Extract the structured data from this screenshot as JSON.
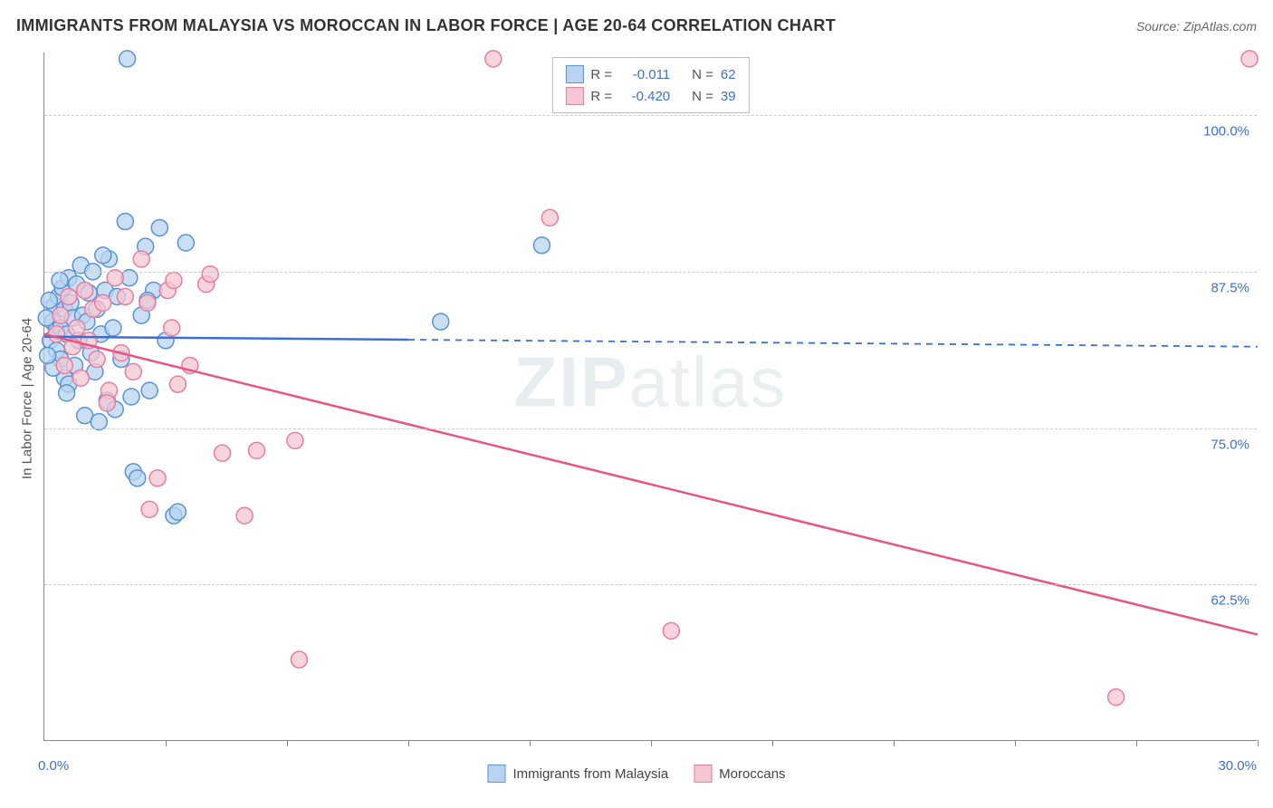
{
  "title": "IMMIGRANTS FROM MALAYSIA VS MOROCCAN IN LABOR FORCE | AGE 20-64 CORRELATION CHART",
  "source_label": "Source: ZipAtlas.com",
  "watermark": {
    "zip": "ZIP",
    "atlas": "atlas"
  },
  "y_axis_title": "In Labor Force | Age 20-64",
  "axes": {
    "xlim": [
      0,
      30
    ],
    "ylim": [
      50,
      105
    ],
    "x_min_label": "0.0%",
    "x_max_label": "30.0%",
    "x_min_color": "#3b6fd6",
    "x_max_color": "#3b6fd6",
    "x_tick_positions": [
      3,
      6,
      9,
      12,
      15,
      18,
      21,
      24,
      27,
      30
    ],
    "y_gridlines": [
      62.5,
      75.0,
      87.5,
      100.0
    ],
    "y_tick_labels": [
      "62.5%",
      "75.0%",
      "87.5%",
      "100.0%"
    ],
    "y_tick_color": "#3b6fd6"
  },
  "series": [
    {
      "name": "Immigrants from Malaysia",
      "fill": "#b8d4f0",
      "stroke": "#5a93d6",
      "line_stroke": "#3b6fd6",
      "marker_radius": 9,
      "marker_opacity": 0.75,
      "R_label": "-0.011",
      "N_label": "62",
      "regression": {
        "x1": 0,
        "y1": 82.3,
        "x2": 30,
        "y2": 81.5,
        "solid_until_x": 9
      },
      "points": [
        [
          0.15,
          82.0
        ],
        [
          0.2,
          83.5
        ],
        [
          0.25,
          84.8
        ],
        [
          0.3,
          81.2
        ],
        [
          0.3,
          82.8
        ],
        [
          0.35,
          85.5
        ],
        [
          0.4,
          80.5
        ],
        [
          0.4,
          83.0
        ],
        [
          0.45,
          86.2
        ],
        [
          0.5,
          79.0
        ],
        [
          0.5,
          84.5
        ],
        [
          0.55,
          82.5
        ],
        [
          0.6,
          87.0
        ],
        [
          0.6,
          78.5
        ],
        [
          0.65,
          85.0
        ],
        [
          0.7,
          83.8
        ],
        [
          0.75,
          80.0
        ],
        [
          0.8,
          86.5
        ],
        [
          0.85,
          82.0
        ],
        [
          0.9,
          88.0
        ],
        [
          0.95,
          84.0
        ],
        [
          1.0,
          76.0
        ],
        [
          1.05,
          83.5
        ],
        [
          1.1,
          85.8
        ],
        [
          1.15,
          81.0
        ],
        [
          1.2,
          87.5
        ],
        [
          1.25,
          79.5
        ],
        [
          1.3,
          84.5
        ],
        [
          1.4,
          82.5
        ],
        [
          1.5,
          86.0
        ],
        [
          1.55,
          77.2
        ],
        [
          1.6,
          88.5
        ],
        [
          1.7,
          83.0
        ],
        [
          1.8,
          85.5
        ],
        [
          1.9,
          80.5
        ],
        [
          2.0,
          91.5
        ],
        [
          2.05,
          104.5
        ],
        [
          2.1,
          87.0
        ],
        [
          2.2,
          71.5
        ],
        [
          2.3,
          71.0
        ],
        [
          2.4,
          84.0
        ],
        [
          2.5,
          89.5
        ],
        [
          2.6,
          78.0
        ],
        [
          2.7,
          86.0
        ],
        [
          2.85,
          91.0
        ],
        [
          3.0,
          82.0
        ],
        [
          3.2,
          68.0
        ],
        [
          3.3,
          68.3
        ],
        [
          3.5,
          89.8
        ],
        [
          2.15,
          77.5
        ],
        [
          1.35,
          75.5
        ],
        [
          0.55,
          77.8
        ],
        [
          0.38,
          86.8
        ],
        [
          0.22,
          79.8
        ],
        [
          0.12,
          85.2
        ],
        [
          0.08,
          80.8
        ],
        [
          0.05,
          83.8
        ],
        [
          1.45,
          88.8
        ],
        [
          1.75,
          76.5
        ],
        [
          2.55,
          85.2
        ],
        [
          9.8,
          83.5
        ],
        [
          12.3,
          89.6
        ]
      ]
    },
    {
      "name": "Moroccans",
      "fill": "#f6c6d2",
      "stroke": "#e87ea0",
      "line_stroke": "#e8557f",
      "marker_radius": 9,
      "marker_opacity": 0.75,
      "R_label": "-0.420",
      "N_label": "39",
      "regression": {
        "x1": 0,
        "y1": 82.5,
        "x2": 30,
        "y2": 58.5,
        "solid_until_x": 30
      },
      "points": [
        [
          0.3,
          82.5
        ],
        [
          0.4,
          84.0
        ],
        [
          0.5,
          80.0
        ],
        [
          0.6,
          85.5
        ],
        [
          0.7,
          81.5
        ],
        [
          0.8,
          83.0
        ],
        [
          0.9,
          79.0
        ],
        [
          1.0,
          86.0
        ],
        [
          1.1,
          82.0
        ],
        [
          1.2,
          84.5
        ],
        [
          1.3,
          80.5
        ],
        [
          1.45,
          85.0
        ],
        [
          1.6,
          78.0
        ],
        [
          1.75,
          87.0
        ],
        [
          1.9,
          81.0
        ],
        [
          2.0,
          85.5
        ],
        [
          2.2,
          79.5
        ],
        [
          2.4,
          88.5
        ],
        [
          2.55,
          85.0
        ],
        [
          2.6,
          68.5
        ],
        [
          2.8,
          71.0
        ],
        [
          3.05,
          86.0
        ],
        [
          3.15,
          83.0
        ],
        [
          3.2,
          86.8
        ],
        [
          3.3,
          78.5
        ],
        [
          3.6,
          80.0
        ],
        [
          4.0,
          86.5
        ],
        [
          4.1,
          87.3
        ],
        [
          4.4,
          73.0
        ],
        [
          4.95,
          68.0
        ],
        [
          5.25,
          73.2
        ],
        [
          6.2,
          74.0
        ],
        [
          6.3,
          56.5
        ],
        [
          11.1,
          104.5
        ],
        [
          12.5,
          91.8
        ],
        [
          15.5,
          58.8
        ],
        [
          26.5,
          53.5
        ],
        [
          29.8,
          104.5
        ],
        [
          1.55,
          77.0
        ]
      ]
    }
  ],
  "legend_top": {
    "R_prefix": "R = ",
    "N_prefix": "N = ",
    "value_color": "#3b6fd6",
    "label_color": "#555"
  },
  "legend_bottom": {
    "items": [
      "Immigrants from Malaysia",
      "Moroccans"
    ]
  },
  "styling": {
    "background": "#ffffff",
    "axis_color": "#888",
    "grid_color": "#cccccc",
    "title_color": "#333333",
    "title_fontsize": 18,
    "tick_fontsize": 15
  }
}
